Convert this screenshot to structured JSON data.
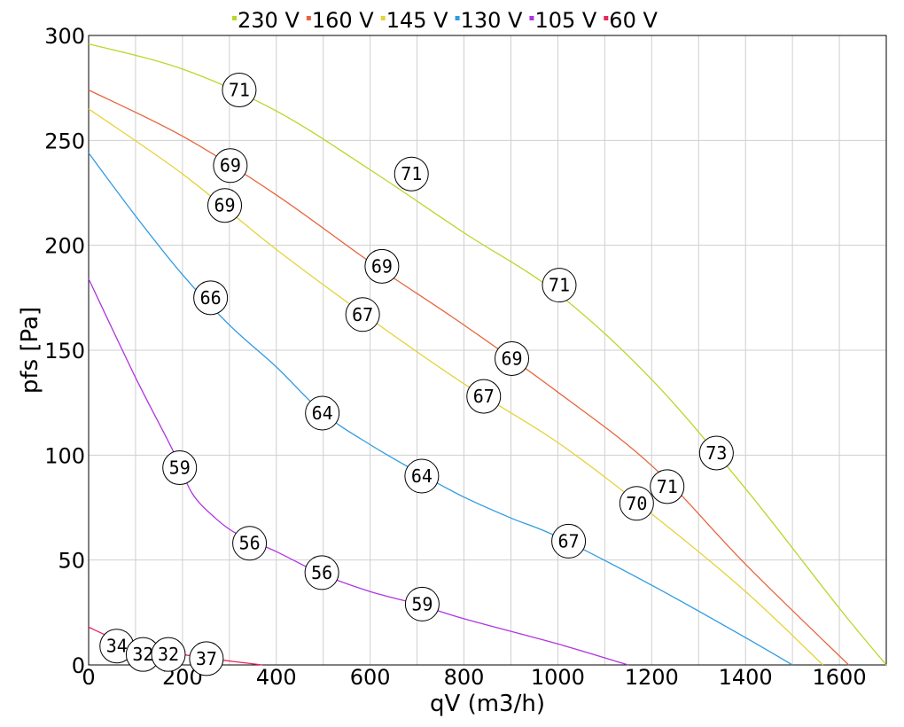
{
  "chart_data": {
    "type": "line",
    "xlabel": "qV (m3/h)",
    "ylabel": "pfs [Pa]",
    "xlim": [
      0,
      1700
    ],
    "ylim": [
      0,
      300
    ],
    "xticks": [
      0,
      200,
      400,
      600,
      800,
      1000,
      1200,
      1400,
      1600
    ],
    "yticks": [
      0,
      50,
      100,
      150,
      200,
      250,
      300
    ],
    "xtick_labels": [
      "0",
      "200",
      "400",
      "600",
      "800",
      "1000",
      "1200",
      "1400",
      "1600"
    ],
    "ytick_labels": [
      "0",
      "50",
      "100",
      "150",
      "200",
      "250",
      "300"
    ],
    "grid": true,
    "legend_position": "top",
    "series": [
      {
        "name": "230 V",
        "color": "#b5d92a",
        "points": [
          [
            0,
            296
          ],
          [
            200,
            284
          ],
          [
            400,
            264
          ],
          [
            600,
            236
          ],
          [
            800,
            206
          ],
          [
            1000,
            177
          ],
          [
            1200,
            136
          ],
          [
            1400,
            84
          ],
          [
            1600,
            27
          ],
          [
            1700,
            0
          ]
        ],
        "markers": [
          {
            "x": 321,
            "y": 274,
            "label": "71"
          },
          {
            "x": 688,
            "y": 234,
            "label": "71"
          },
          {
            "x": 1003,
            "y": 181,
            "label": "71"
          },
          {
            "x": 1338,
            "y": 101,
            "label": "73"
          }
        ]
      },
      {
        "name": "160 V",
        "color": "#e8653c",
        "points": [
          [
            0,
            274
          ],
          [
            200,
            252
          ],
          [
            400,
            224
          ],
          [
            600,
            192
          ],
          [
            800,
            162
          ],
          [
            1000,
            130
          ],
          [
            1200,
            95
          ],
          [
            1400,
            48
          ],
          [
            1620,
            0
          ]
        ],
        "markers": [
          {
            "x": 302,
            "y": 238,
            "label": "69"
          },
          {
            "x": 625,
            "y": 190,
            "label": "69"
          },
          {
            "x": 902,
            "y": 146,
            "label": "69"
          },
          {
            "x": 1233,
            "y": 85,
            "label": "71"
          }
        ]
      },
      {
        "name": "145 V",
        "color": "#e6d23a",
        "points": [
          [
            0,
            265
          ],
          [
            200,
            234
          ],
          [
            400,
            198
          ],
          [
            600,
            165
          ],
          [
            800,
            134
          ],
          [
            1000,
            106
          ],
          [
            1200,
            72
          ],
          [
            1400,
            35
          ],
          [
            1565,
            0
          ]
        ],
        "markers": [
          {
            "x": 290,
            "y": 219,
            "label": "69"
          },
          {
            "x": 584,
            "y": 167,
            "label": "67"
          },
          {
            "x": 842,
            "y": 128,
            "label": "67"
          },
          {
            "x": 1168,
            "y": 77,
            "label": "70"
          }
        ]
      },
      {
        "name": "130 V",
        "color": "#2f9be3",
        "points": [
          [
            0,
            244
          ],
          [
            100,
            214
          ],
          [
            200,
            186
          ],
          [
            300,
            162
          ],
          [
            400,
            142
          ],
          [
            500,
            120
          ],
          [
            600,
            105
          ],
          [
            700,
            92
          ],
          [
            800,
            80
          ],
          [
            900,
            70
          ],
          [
            1000,
            61
          ],
          [
            1200,
            38
          ],
          [
            1400,
            13
          ],
          [
            1500,
            0
          ]
        ],
        "markers": [
          {
            "x": 260,
            "y": 175,
            "label": "66"
          },
          {
            "x": 498,
            "y": 120,
            "label": "64"
          },
          {
            "x": 710,
            "y": 90,
            "label": "64"
          },
          {
            "x": 1023,
            "y": 59,
            "label": "67"
          }
        ]
      },
      {
        "name": "105 V",
        "color": "#b034e0",
        "points": [
          [
            0,
            184
          ],
          [
            100,
            137
          ],
          [
            180,
            102
          ],
          [
            220,
            82
          ],
          [
            270,
            70
          ],
          [
            320,
            62
          ],
          [
            400,
            54
          ],
          [
            500,
            43
          ],
          [
            600,
            35
          ],
          [
            700,
            29
          ],
          [
            800,
            22
          ],
          [
            1000,
            10
          ],
          [
            1150,
            0
          ]
        ],
        "markers": [
          {
            "x": 194,
            "y": 94,
            "label": "59"
          },
          {
            "x": 343,
            "y": 58,
            "label": "56"
          },
          {
            "x": 497,
            "y": 44,
            "label": "56"
          },
          {
            "x": 711,
            "y": 29,
            "label": "59"
          }
        ]
      },
      {
        "name": "60 V",
        "color": "#e8245b",
        "points": [
          [
            0,
            18
          ],
          [
            60,
            12
          ],
          [
            120,
            8
          ],
          [
            200,
            5
          ],
          [
            260,
            3
          ],
          [
            370,
            0
          ]
        ],
        "markers": [
          {
            "x": 60,
            "y": 9,
            "label": "34"
          },
          {
            "x": 116,
            "y": 5,
            "label": "32"
          },
          {
            "x": 170,
            "y": 5,
            "label": "32"
          },
          {
            "x": 251,
            "y": 3,
            "label": "37"
          }
        ]
      }
    ]
  }
}
